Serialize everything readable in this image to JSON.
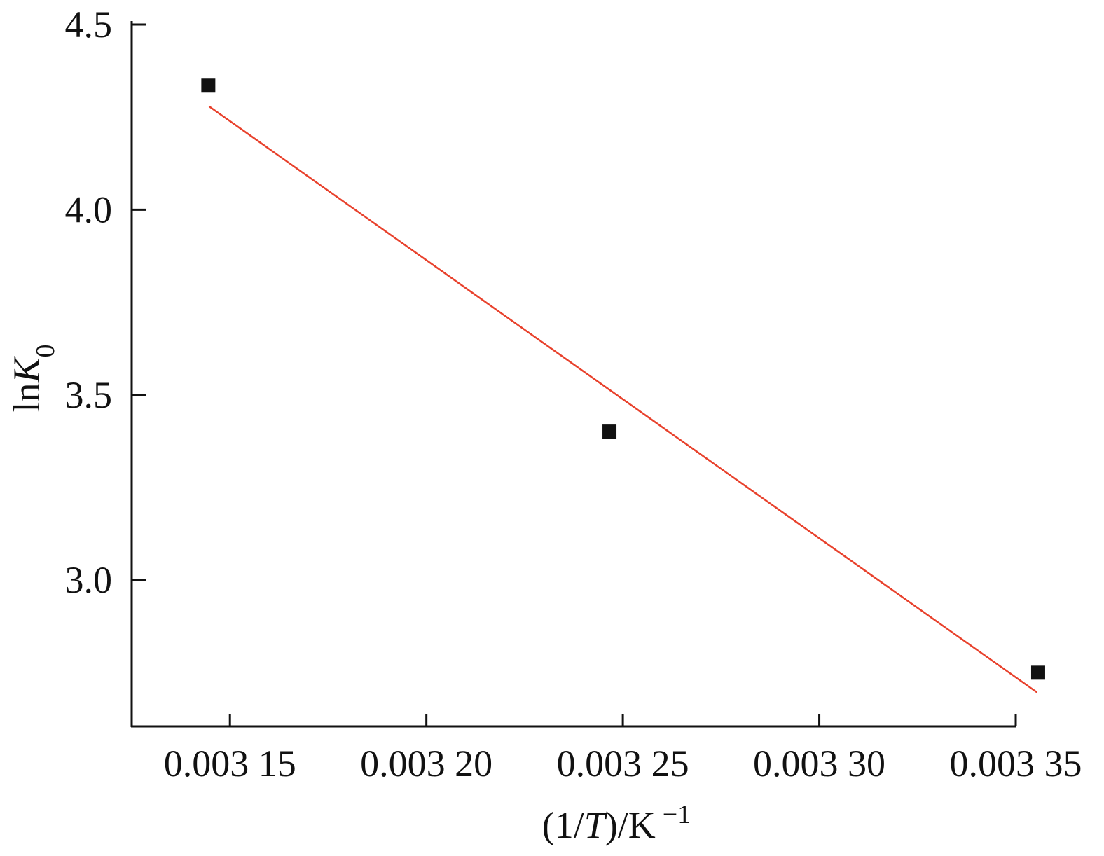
{
  "chart_data": {
    "type": "scatter",
    "xlabel": [
      "(1/",
      "T",
      ")/K",
      "−1"
    ],
    "ylabel": [
      "ln",
      "K",
      "0"
    ],
    "x": [
      0.0031445,
      0.0032466,
      0.0033557
    ],
    "series": [
      {
        "color": "#111111",
        "values": [
          4.335,
          3.401,
          2.75
        ]
      }
    ],
    "fit": {
      "color": "#e8412c",
      "x": [
        0.0031447,
        0.0033554
      ],
      "values": [
        4.279,
        2.697
      ]
    },
    "xlim": [
      0.003125,
      0.00335
    ],
    "ylim": [
      2.605,
      4.5
    ],
    "xticks": [
      {
        "value": 0.00315,
        "label": "0.003 15"
      },
      {
        "value": 0.0032,
        "label": "0.003 20"
      },
      {
        "value": 0.00325,
        "label": "0.003 25"
      },
      {
        "value": 0.0033,
        "label": "0.003 30"
      },
      {
        "value": 0.00335,
        "label": "0.003 35"
      }
    ],
    "yticks": [
      {
        "value": 3.0,
        "label": "3.0"
      },
      3.5,
      {
        "value": 4.0,
        "label": "4.0"
      },
      4.5
    ],
    "grid": false
  }
}
